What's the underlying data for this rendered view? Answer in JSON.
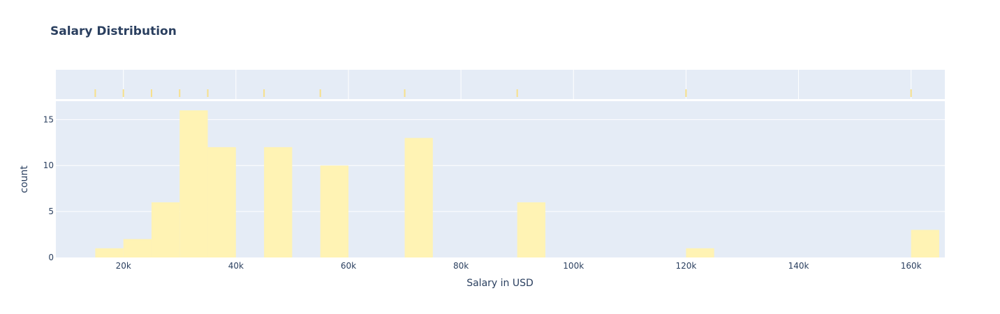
{
  "chart_data": {
    "type": "bar",
    "subtype": "histogram-with-rug",
    "title": "Salary Distribution",
    "xlabel": "Salary in USD",
    "ylabel": "count",
    "xlim": [
      8000,
      166000
    ],
    "ylim": [
      0,
      17
    ],
    "bin_width": 5000,
    "x_ticks": [
      20000,
      40000,
      60000,
      80000,
      100000,
      120000,
      140000,
      160000
    ],
    "x_tick_labels": [
      "20k",
      "40k",
      "60k",
      "80k",
      "100k",
      "120k",
      "140k",
      "160k"
    ],
    "y_ticks": [
      0,
      5,
      10,
      15
    ],
    "y_tick_labels": [
      "0",
      "5",
      "10",
      "15"
    ],
    "bins": [
      {
        "start": 15000,
        "end": 20000,
        "count": 1
      },
      {
        "start": 20000,
        "end": 25000,
        "count": 2
      },
      {
        "start": 25000,
        "end": 30000,
        "count": 6
      },
      {
        "start": 30000,
        "end": 35000,
        "count": 16
      },
      {
        "start": 35000,
        "end": 40000,
        "count": 12
      },
      {
        "start": 45000,
        "end": 50000,
        "count": 12
      },
      {
        "start": 55000,
        "end": 60000,
        "count": 10
      },
      {
        "start": 70000,
        "end": 75000,
        "count": 13
      },
      {
        "start": 90000,
        "end": 95000,
        "count": 6
      },
      {
        "start": 120000,
        "end": 125000,
        "count": 1
      },
      {
        "start": 160000,
        "end": 165000,
        "count": 3
      }
    ],
    "rug_values": [
      15000,
      20000,
      25000,
      30000,
      35000,
      45000,
      55000,
      70000,
      90000,
      120000,
      160000
    ],
    "grid": true,
    "colors": {
      "bar": "#fff3b4",
      "rug": "#f7e08a",
      "plot_background": "#e5ecf6",
      "grid": "#ffffff",
      "text": "#2a3f5f"
    }
  }
}
